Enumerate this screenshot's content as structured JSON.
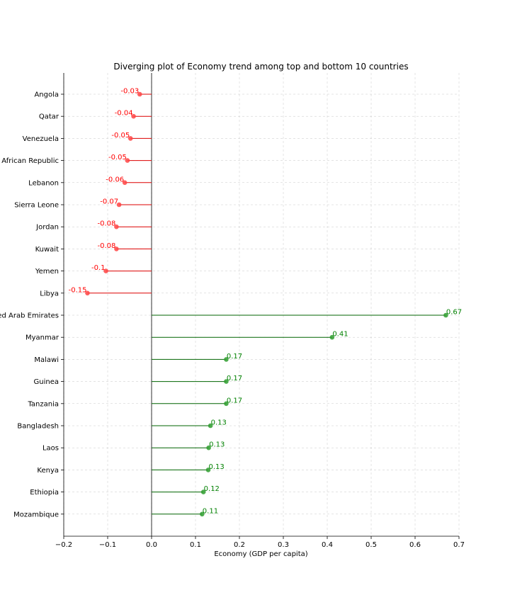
{
  "chart_data": {
    "type": "lollipop",
    "title": "Diverging plot of Economy trend among top and bottom 10 countries",
    "xlabel": "Economy (GDP per capita)",
    "ylabel": "",
    "xlim": [
      -0.2,
      0.7
    ],
    "xticks": [
      "−0.2",
      "−0.1",
      "0.0",
      "0.1",
      "0.2",
      "0.3",
      "0.4",
      "0.5",
      "0.6",
      "0.7"
    ],
    "xtick_values": [
      -0.2,
      -0.1,
      0.0,
      0.1,
      0.2,
      0.3,
      0.4,
      0.5,
      0.6,
      0.7
    ],
    "grid": true,
    "colors": {
      "negative": "#ff4444",
      "positive": "#2e9e2e",
      "negative_line": "#dd0000",
      "positive_line": "#006400"
    },
    "points": [
      {
        "country": "Angola",
        "value": -0.027,
        "label": "-0.03"
      },
      {
        "country": "Qatar",
        "value": -0.041,
        "label": "-0.04"
      },
      {
        "country": "Venezuela",
        "value": -0.048,
        "label": "-0.05"
      },
      {
        "country": "Central African Republic",
        "value": -0.055,
        "label": "-0.05"
      },
      {
        "country": "Lebanon",
        "value": -0.061,
        "label": "-0.06"
      },
      {
        "country": "Sierra Leone",
        "value": -0.074,
        "label": "-0.07"
      },
      {
        "country": "Jordan",
        "value": -0.08,
        "label": "-0.08"
      },
      {
        "country": "Kuwait",
        "value": -0.08,
        "label": "-0.08"
      },
      {
        "country": "Yemen",
        "value": -0.104,
        "label": "-0.1"
      },
      {
        "country": "Libya",
        "value": -0.146,
        "label": "-0.15"
      },
      {
        "country": "United Arab Emirates",
        "value": 0.67,
        "label": "0.67"
      },
      {
        "country": "Myanmar",
        "value": 0.411,
        "label": "0.41"
      },
      {
        "country": "Malawi",
        "value": 0.17,
        "label": "0.17"
      },
      {
        "country": "Guinea",
        "value": 0.17,
        "label": "0.17"
      },
      {
        "country": "Tanzania",
        "value": 0.17,
        "label": "0.17"
      },
      {
        "country": "Bangladesh",
        "value": 0.134,
        "label": "0.13"
      },
      {
        "country": "Laos",
        "value": 0.13,
        "label": "0.13"
      },
      {
        "country": "Kenya",
        "value": 0.129,
        "label": "0.13"
      },
      {
        "country": "Ethiopia",
        "value": 0.118,
        "label": "0.12"
      },
      {
        "country": "Mozambique",
        "value": 0.115,
        "label": "0.11"
      }
    ]
  }
}
